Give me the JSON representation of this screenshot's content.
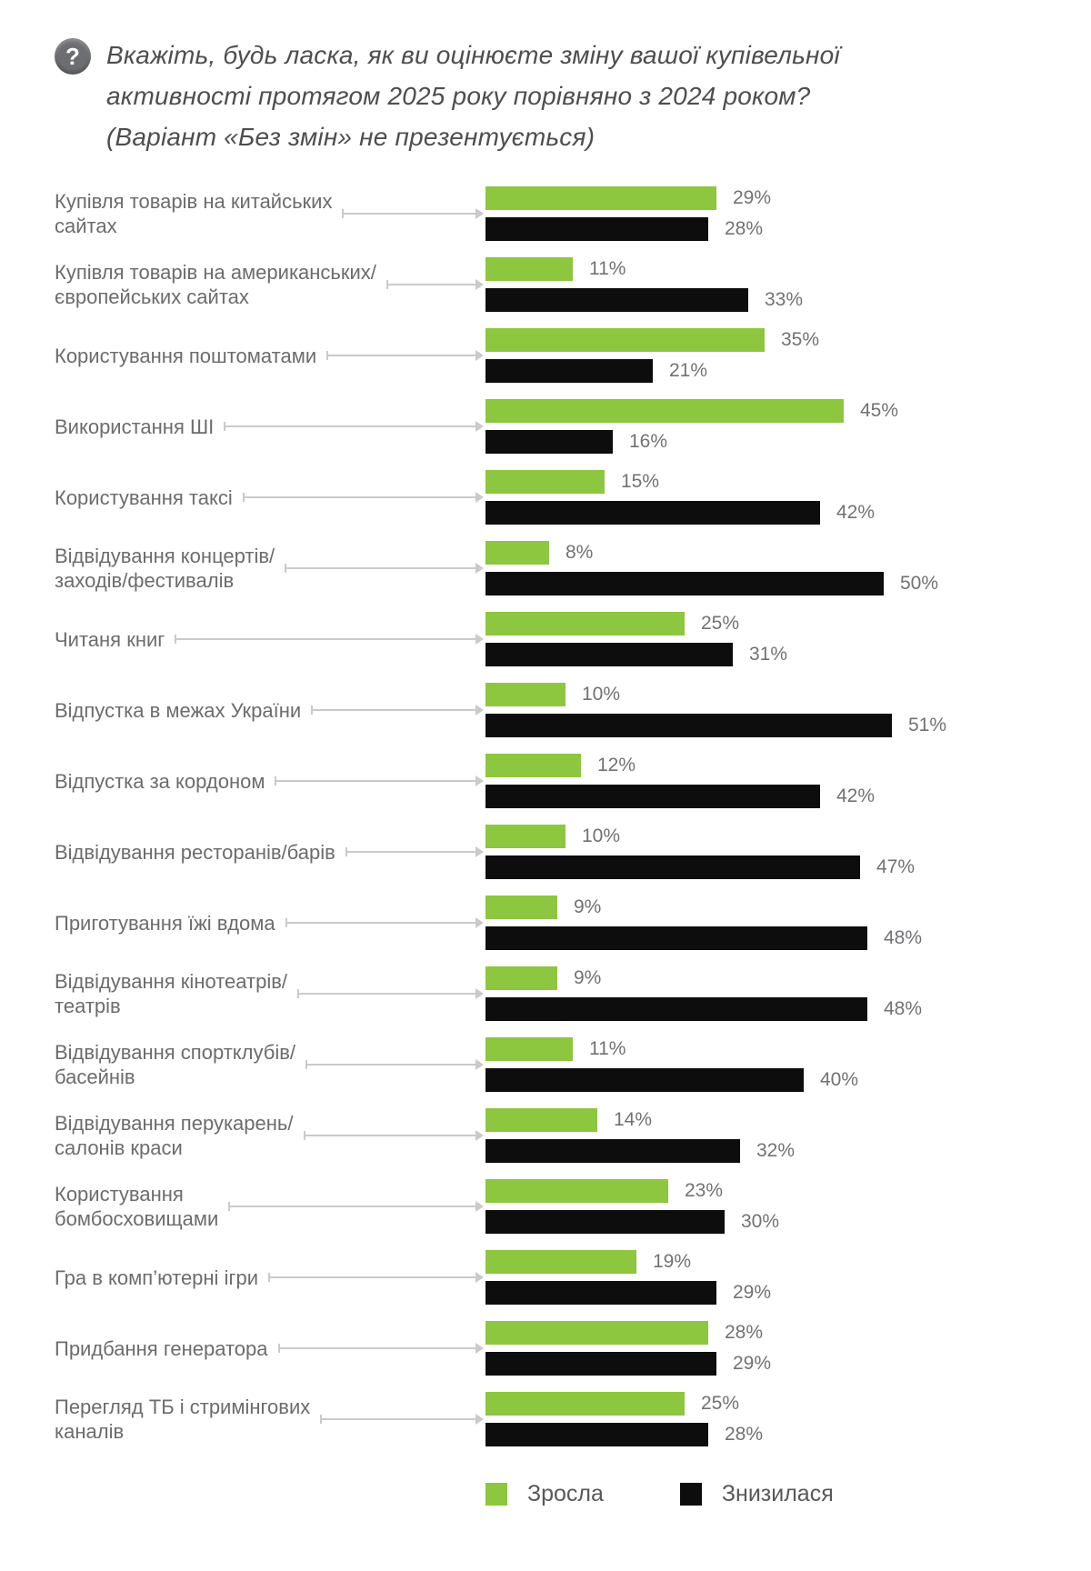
{
  "title": {
    "icon_glyph": "?",
    "lines": [
      "Вкажіть, будь ласка, як ви оцінюєте зміну вашої купівельної",
      "активності протягом 2025 року порівняно з 2024 роком?",
      "(Варіант «Без змін» не презентується)"
    ]
  },
  "legend": [
    {
      "label": "Зросла",
      "color": "#8dc63f"
    },
    {
      "label": "Знизилася",
      "color": "#0d0d0d"
    }
  ],
  "colors": {
    "increased_bar": "#8dc63f",
    "decreased_bar": "#0d0d0d",
    "category_label": "#6b6c6e",
    "value_label": "#717275",
    "leader_line": "#c9cacc"
  },
  "chart_data": {
    "type": "bar",
    "orientation": "horizontal",
    "title": "Вкажіть, будь ласка, як ви оцінюєте зміну вашої купівельної активності протягом 2025 року порівняно з 2024 роком? (Варіант «Без змін» не презентується)",
    "value_suffix": "%",
    "xlim": [
      0,
      55
    ],
    "grid": false,
    "legend_position": "bottom",
    "categories": [
      "Купівля товарів на китайських\nсайтах",
      "Купівля товарів на американських/\nєвропейських сайтах",
      "Користування поштоматами",
      "Використання ШІ",
      "Користування таксі",
      "Відвідування концертів/\nзаходів/фестивалів",
      "Читаня книг",
      "Відпустка в межах України",
      "Відпустка за кордоном",
      "Відвідування ресторанів/барів",
      "Приготування їжі вдома",
      "Відвідування кінотеатрів/\nтеатрів",
      "Відвідування спортклубів/\nбасейнів",
      "Відвідування перукарень/\nсалонів краси",
      "Користування\nбомбосховищами",
      "Гра в комп’ютерні ігри",
      "Придбання генератора",
      "Перегляд ТБ і стримінгових\nканалів"
    ],
    "series": [
      {
        "name": "Зросла",
        "color": "#8dc63f",
        "values": [
          29,
          11,
          35,
          45,
          15,
          8,
          25,
          10,
          12,
          10,
          9,
          9,
          11,
          14,
          23,
          19,
          28,
          25
        ]
      },
      {
        "name": "Знизилася",
        "color": "#0d0d0d",
        "values": [
          28,
          33,
          21,
          16,
          42,
          50,
          31,
          51,
          42,
          47,
          48,
          48,
          40,
          32,
          30,
          29,
          29,
          28
        ]
      }
    ]
  }
}
